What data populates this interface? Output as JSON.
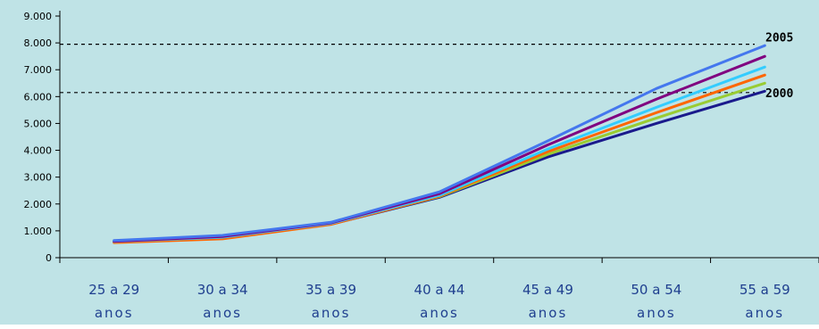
{
  "chart_data": {
    "type": "line",
    "title": "",
    "xlabel": "",
    "ylabel": "",
    "ylim": [
      0,
      9000
    ],
    "yticks": [
      0,
      1000,
      2000,
      3000,
      4000,
      5000,
      6000,
      7000,
      8000,
      9000
    ],
    "ytick_labels": [
      "0",
      "1.000",
      "2.000",
      "3.000",
      "4.000",
      "5.000",
      "6.000",
      "7.000",
      "8.000",
      "9.000"
    ],
    "categories": [
      [
        "25 a 29",
        "anos"
      ],
      [
        "30 a 34",
        "anos"
      ],
      [
        "35 a 39",
        "anos"
      ],
      [
        "40 a 44",
        "anos"
      ],
      [
        "45 a 49",
        "anos"
      ],
      [
        "50 a 54",
        "anos"
      ],
      [
        "55 a 59",
        "anos"
      ]
    ],
    "legend": "none",
    "grid": false,
    "background_color": "#bfe3e6",
    "reference_lines": [
      {
        "y": 7950,
        "label": "2005"
      },
      {
        "y": 6150,
        "label": "2000"
      }
    ],
    "series": [
      {
        "color": "#1a1a8c",
        "values": [
          580,
          720,
          1250,
          2250,
          3750,
          5000,
          6200
        ]
      },
      {
        "color": "#99cc33",
        "values": [
          590,
          740,
          1260,
          2270,
          3850,
          5200,
          6500
        ]
      },
      {
        "color": "#ff6600",
        "values": [
          560,
          700,
          1240,
          2290,
          3950,
          5400,
          6800
        ]
      },
      {
        "color": "#33ccff",
        "values": [
          600,
          760,
          1280,
          2320,
          4050,
          5600,
          7100
        ]
      },
      {
        "color": "#800080",
        "values": [
          610,
          790,
          1300,
          2380,
          4200,
          5900,
          7500
        ]
      },
      {
        "color": "#4477ee",
        "values": [
          640,
          830,
          1320,
          2450,
          4350,
          6300,
          7900
        ]
      }
    ]
  }
}
